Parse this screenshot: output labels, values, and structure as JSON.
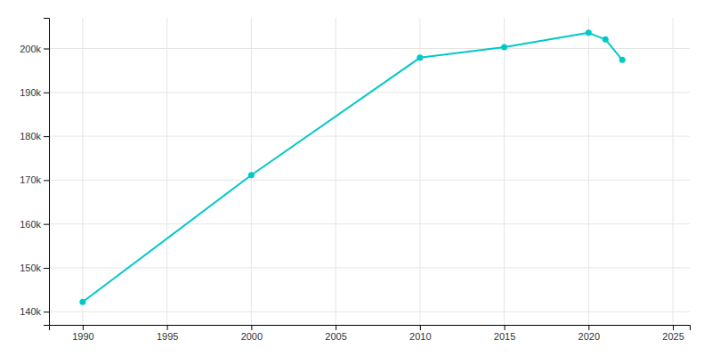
{
  "chart_data": {
    "type": "line",
    "x": [
      1990,
      2000,
      2010,
      2015,
      2020,
      2021,
      2022
    ],
    "values": [
      142216,
      171136,
      197899,
      200322,
      203585,
      202063,
      197409
    ],
    "color": "#00C8C8",
    "marker": "circle",
    "xlim": [
      1988,
      2026
    ],
    "ylim": [
      137000,
      207000
    ],
    "xticks": [
      1990,
      1995,
      2000,
      2005,
      2010,
      2015,
      2020,
      2025
    ],
    "yticks": [
      {
        "value": 140000,
        "label": "140k"
      },
      {
        "value": 150000,
        "label": "150k"
      },
      {
        "value": 160000,
        "label": "160k"
      },
      {
        "value": 170000,
        "label": "170k"
      },
      {
        "value": 180000,
        "label": "180k"
      },
      {
        "value": 190000,
        "label": "190k"
      },
      {
        "value": 200000,
        "label": "200k"
      }
    ],
    "grid": true
  }
}
